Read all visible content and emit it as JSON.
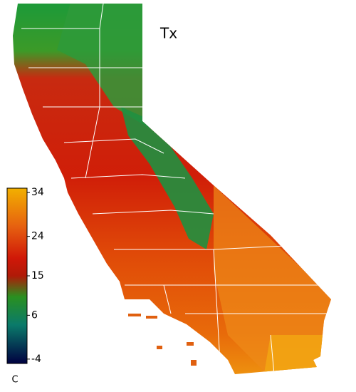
{
  "title": "Tx",
  "colorbar": {
    "lim": [
      -5,
      35
    ],
    "ticks": [
      34,
      24,
      15,
      6,
      -4
    ],
    "unit": "C"
  }
}
